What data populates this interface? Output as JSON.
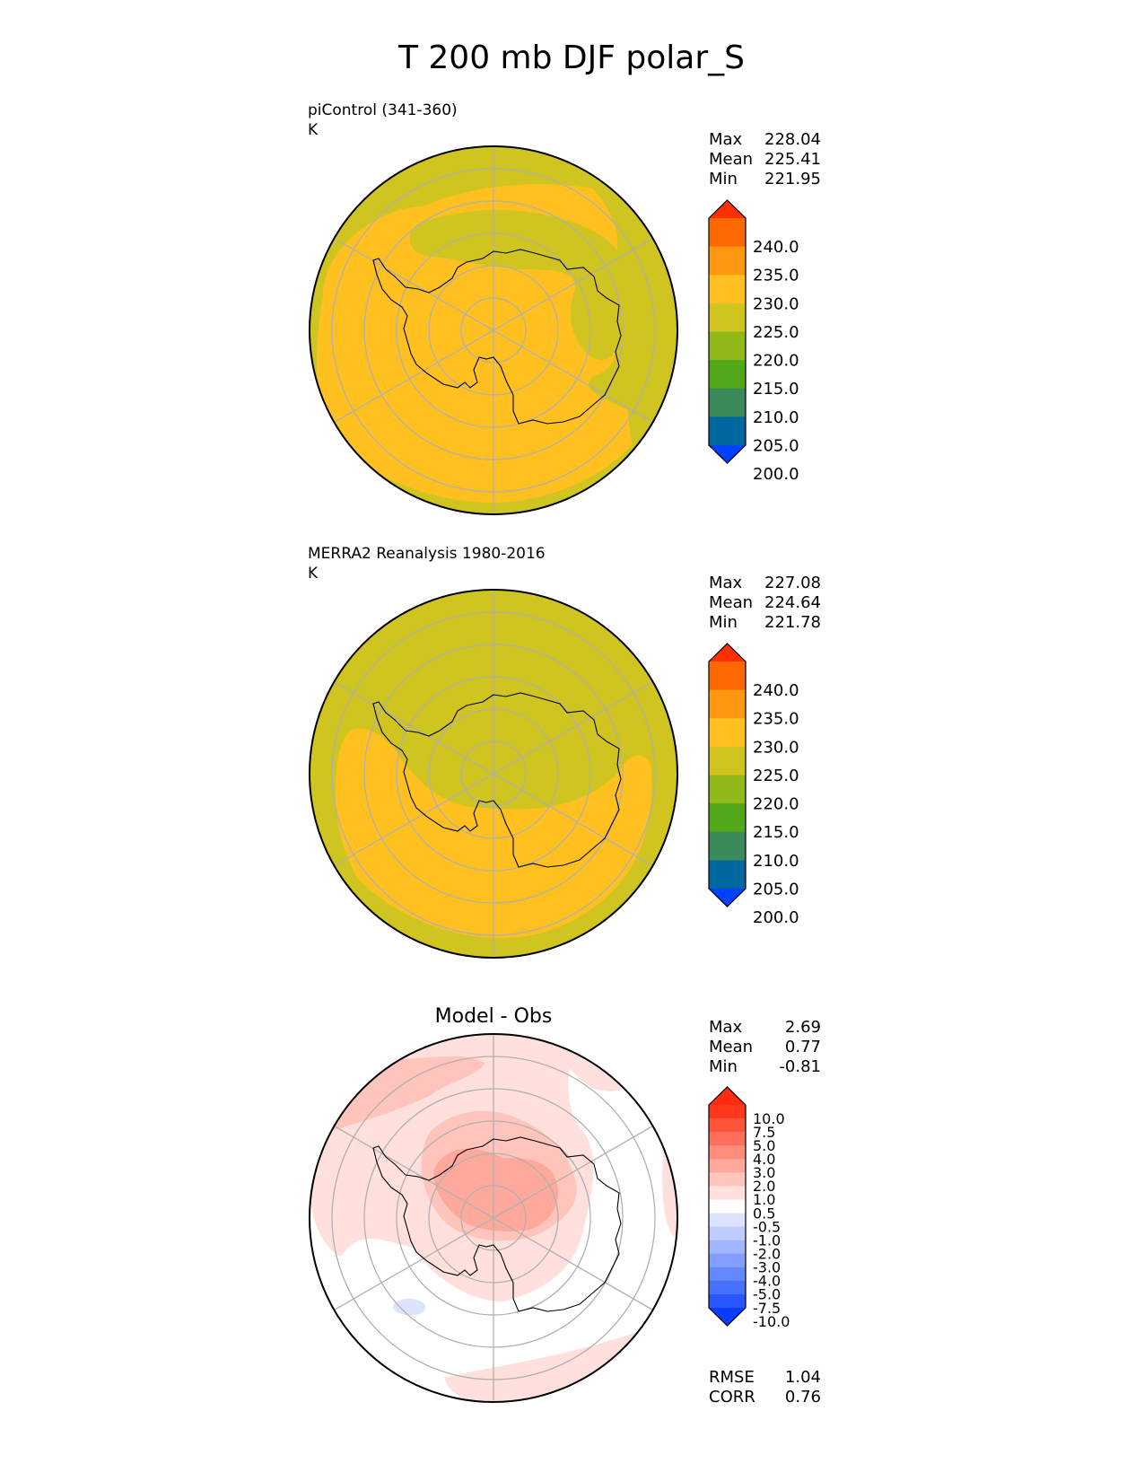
{
  "page_title": "T 200 mb DJF polar_S",
  "panels": [
    {
      "title_lines": [
        "piControl (341-360)",
        "K"
      ],
      "center_title": "",
      "stats": [
        {
          "label": "Max",
          "value": "228.04"
        },
        {
          "label": "Mean",
          "value": "225.41"
        },
        {
          "label": "Min",
          "value": "221.95"
        }
      ],
      "colorbar_ticks": [
        "240.0",
        "235.0",
        "230.0",
        "225.0",
        "220.0",
        "215.0",
        "210.0",
        "205.0",
        "200.0"
      ],
      "colorbar_colors": [
        "#0040ff",
        "#0068a0",
        "#3a8a5a",
        "#52a818",
        "#90b818",
        "#d0c420",
        "#ffc020",
        "#ff9810",
        "#ff6800",
        "#ff3000"
      ],
      "extend_colors": {
        "low": "#0040ff",
        "high": "#ff3000"
      },
      "footer_stats": []
    },
    {
      "title_lines": [
        "MERRA2 Reanalysis 1980-2016",
        "K"
      ],
      "center_title": "",
      "stats": [
        {
          "label": "Max",
          "value": "227.08"
        },
        {
          "label": "Mean",
          "value": "224.64"
        },
        {
          "label": "Min",
          "value": "221.78"
        }
      ],
      "colorbar_ticks": [
        "240.0",
        "235.0",
        "230.0",
        "225.0",
        "220.0",
        "215.0",
        "210.0",
        "205.0",
        "200.0"
      ],
      "colorbar_colors": [
        "#0040ff",
        "#0068a0",
        "#3a8a5a",
        "#52a818",
        "#90b818",
        "#d0c420",
        "#ffc020",
        "#ff9810",
        "#ff6800",
        "#ff3000"
      ],
      "extend_colors": {
        "low": "#0040ff",
        "high": "#ff3000"
      },
      "footer_stats": []
    },
    {
      "title_lines": [],
      "center_title": "Model - Obs",
      "stats": [
        {
          "label": "Max",
          "value": "2.69"
        },
        {
          "label": "Mean",
          "value": "0.77"
        },
        {
          "label": "Min",
          "value": "-0.81"
        }
      ],
      "colorbar_ticks": [
        "10.0",
        "7.5",
        "5.0",
        "4.0",
        "3.0",
        "2.0",
        "1.0",
        "0.5",
        "-0.5",
        "-1.0",
        "-2.0",
        "-3.0",
        "-4.0",
        "-5.0",
        "-7.5",
        "-10.0"
      ],
      "colorbar_colors": [
        "#0a3cff",
        "#2a56ff",
        "#4870ff",
        "#6688ff",
        "#849eff",
        "#a2b6ff",
        "#c0ccff",
        "#dde4ff",
        "#ffffff",
        "#ffe0dc",
        "#ffc4bc",
        "#ffa89c",
        "#ff8c7c",
        "#ff705c",
        "#ff543c",
        "#ff381c",
        "#ff2c10"
      ],
      "extend_colors": {
        "low": "#0a3cff",
        "high": "#ff2c10"
      },
      "footer_stats": [
        {
          "label": "RMSE",
          "value": "1.04"
        },
        {
          "label": "CORR",
          "value": "0.76"
        }
      ]
    }
  ],
  "chart_data": [
    {
      "type": "heatmap",
      "title": "piControl (341-360)",
      "units": "K",
      "levels": [
        200,
        205,
        210,
        215,
        220,
        225,
        230,
        235,
        240
      ],
      "extend": "both",
      "summary": {
        "max": 228.04,
        "mean": 225.41,
        "min": 221.95
      },
      "projection": "south polar stereographic",
      "grid": true
    },
    {
      "type": "heatmap",
      "title": "MERRA2 Reanalysis 1980-2016",
      "units": "K",
      "levels": [
        200,
        205,
        210,
        215,
        220,
        225,
        230,
        235,
        240
      ],
      "extend": "both",
      "summary": {
        "max": 227.08,
        "mean": 224.64,
        "min": 221.78
      },
      "projection": "south polar stereographic",
      "grid": true
    },
    {
      "type": "heatmap",
      "title": "Model - Obs",
      "levels": [
        -10.0,
        -7.5,
        -5.0,
        -4.0,
        -3.0,
        -2.0,
        -1.0,
        -0.5,
        0.5,
        1.0,
        2.0,
        3.0,
        4.0,
        5.0,
        7.5,
        10.0
      ],
      "extend": "both",
      "summary": {
        "max": 2.69,
        "mean": 0.77,
        "min": -0.81
      },
      "rmse": 1.04,
      "corr": 0.76,
      "projection": "south polar stereographic",
      "grid": true
    }
  ]
}
